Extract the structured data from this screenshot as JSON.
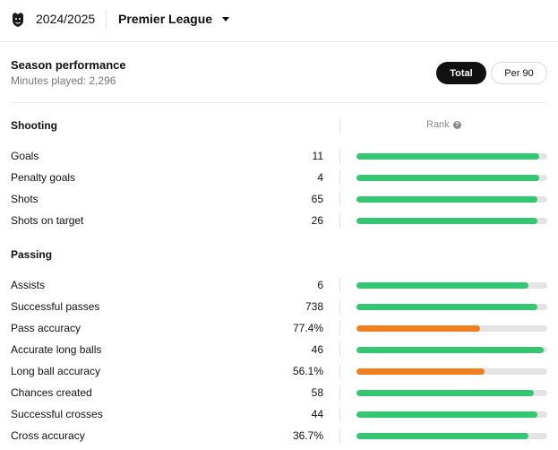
{
  "header": {
    "season": "2024/2025",
    "league": "Premier League",
    "league_logo_icon": "premier-league-lion-icon"
  },
  "performance": {
    "title": "Season performance",
    "subtitle": "Minutes played: 2,296",
    "toggle": {
      "total_label": "Total",
      "per90_label": "Per 90",
      "selected": "Total"
    }
  },
  "rank_label": "Rank",
  "colors": {
    "green": "#34c671",
    "orange": "#f07f22",
    "track": "#e4e4e4"
  },
  "sections": [
    {
      "title": "Shooting",
      "stats": [
        {
          "label": "Goals",
          "value": "11",
          "rank_fill": 0.96,
          "color": "green"
        },
        {
          "label": "Penalty goals",
          "value": "4",
          "rank_fill": 0.96,
          "color": "green"
        },
        {
          "label": "Shots",
          "value": "65",
          "rank_fill": 0.95,
          "color": "green"
        },
        {
          "label": "Shots on target",
          "value": "26",
          "rank_fill": 0.95,
          "color": "green"
        }
      ]
    },
    {
      "title": "Passing",
      "stats": [
        {
          "label": "Assists",
          "value": "6",
          "rank_fill": 0.9,
          "color": "green"
        },
        {
          "label": "Successful passes",
          "value": "738",
          "rank_fill": 0.95,
          "color": "green"
        },
        {
          "label": "Pass accuracy",
          "value": "77.4%",
          "rank_fill": 0.65,
          "color": "orange"
        },
        {
          "label": "Accurate long balls",
          "value": "46",
          "rank_fill": 0.98,
          "color": "green"
        },
        {
          "label": "Long ball accuracy",
          "value": "56.1%",
          "rank_fill": 0.67,
          "color": "orange"
        },
        {
          "label": "Chances created",
          "value": "58",
          "rank_fill": 0.93,
          "color": "green"
        },
        {
          "label": "Successful crosses",
          "value": "44",
          "rank_fill": 0.95,
          "color": "green"
        },
        {
          "label": "Cross accuracy",
          "value": "36.7%",
          "rank_fill": 0.9,
          "color": "green"
        }
      ]
    }
  ]
}
